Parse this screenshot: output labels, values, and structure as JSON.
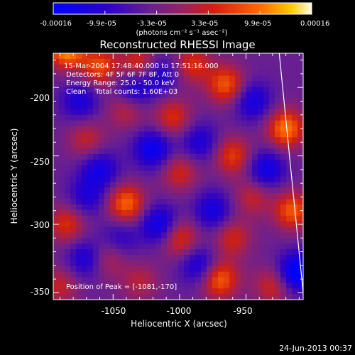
{
  "chart_data": {
    "type": "heatmap",
    "title": "Reconstructed RHESSI Image",
    "xlabel": "Heliocentric X (arcsec)",
    "ylabel": "Heliocentric Y (arcsec)",
    "xlim": [
      -1095,
      -907
    ],
    "ylim": [
      -355,
      -175
    ],
    "xticks": [
      -1050,
      -1000,
      -950
    ],
    "yticks": [
      -200,
      -250,
      -300,
      -350
    ],
    "colorbar": {
      "min": -0.00016,
      "max": 0.00016,
      "tick_labels": [
        "-0.00016",
        "-9.9e-05",
        "-3.3e-05",
        "3.3e-05",
        "9.9e-05",
        "0.00016"
      ],
      "unit_label": "(photons cm⁻² s⁻¹ asec⁻²)"
    },
    "annotations": {
      "time_range": "15-Mar-2004 17:48:40.000 to 17:51:16.000",
      "detectors": "Detectors: 4F 5F 6F 7F 8F, Att 0",
      "energy_range": "Energy Range: 25.0 - 50.0 keV",
      "method": "Clean    Total counts: 1.60E+03",
      "peak_position": "Position of Peak = [-1081,-170]"
    },
    "limb_line": {
      "x": [
        -925,
        -907
      ],
      "y": [
        -175,
        -350
      ]
    },
    "sources": [
      {
        "x": -1085,
        "y": -172,
        "value": 0.00016
      },
      {
        "x": -1060,
        "y": -185,
        "value": 0.00011
      },
      {
        "x": -1030,
        "y": -183,
        "value": 0.0001
      },
      {
        "x": -990,
        "y": -183,
        "value": 9e-05
      },
      {
        "x": -965,
        "y": -198,
        "value": 0.00012
      },
      {
        "x": -920,
        "y": -230,
        "value": 0.00014
      },
      {
        "x": -1040,
        "y": -215,
        "value": 8e-05
      },
      {
        "x": -1005,
        "y": -222,
        "value": 9e-05
      },
      {
        "x": -1070,
        "y": -238,
        "value": 7e-05
      },
      {
        "x": -960,
        "y": -250,
        "value": 0.0001
      },
      {
        "x": -1040,
        "y": -285,
        "value": 0.00013
      },
      {
        "x": -1000,
        "y": -262,
        "value": 8e-05
      },
      {
        "x": -945,
        "y": -280,
        "value": 7e-05
      },
      {
        "x": -915,
        "y": -290,
        "value": 0.00012
      },
      {
        "x": -1085,
        "y": -300,
        "value": 9e-05
      },
      {
        "x": -1000,
        "y": -310,
        "value": 0.0001
      },
      {
        "x": -960,
        "y": -310,
        "value": 8e-05
      },
      {
        "x": -1055,
        "y": -325,
        "value": 7e-05
      },
      {
        "x": -1030,
        "y": -342,
        "value": 6e-05
      },
      {
        "x": -970,
        "y": -340,
        "value": 0.00013
      },
      {
        "x": -930,
        "y": -345,
        "value": 8e-05
      },
      {
        "x": -1090,
        "y": -345,
        "value": 7e-05
      },
      {
        "x": -1075,
        "y": -210,
        "value": -8e-05
      },
      {
        "x": -1035,
        "y": -202,
        "value": -0.0001
      },
      {
        "x": -1015,
        "y": -190,
        "value": -8e-05
      },
      {
        "x": -945,
        "y": -210,
        "value": -9e-05
      },
      {
        "x": -1060,
        "y": -260,
        "value": -9e-05
      },
      {
        "x": -1020,
        "y": -245,
        "value": -0.00011
      },
      {
        "x": -985,
        "y": -240,
        "value": -8e-05
      },
      {
        "x": -935,
        "y": -260,
        "value": -0.0001
      },
      {
        "x": -1070,
        "y": -280,
        "value": -7e-05
      },
      {
        "x": -1015,
        "y": -300,
        "value": -0.00011
      },
      {
        "x": -975,
        "y": -290,
        "value": -9e-05
      },
      {
        "x": -1070,
        "y": -325,
        "value": -9e-05
      },
      {
        "x": -985,
        "y": -330,
        "value": -9e-05
      },
      {
        "x": -912,
        "y": -335,
        "value": -0.00014
      },
      {
        "x": -1045,
        "y": -310,
        "value": -6e-05
      }
    ]
  },
  "footer": {
    "timestamp": "24-Jun-2013 00:37"
  }
}
